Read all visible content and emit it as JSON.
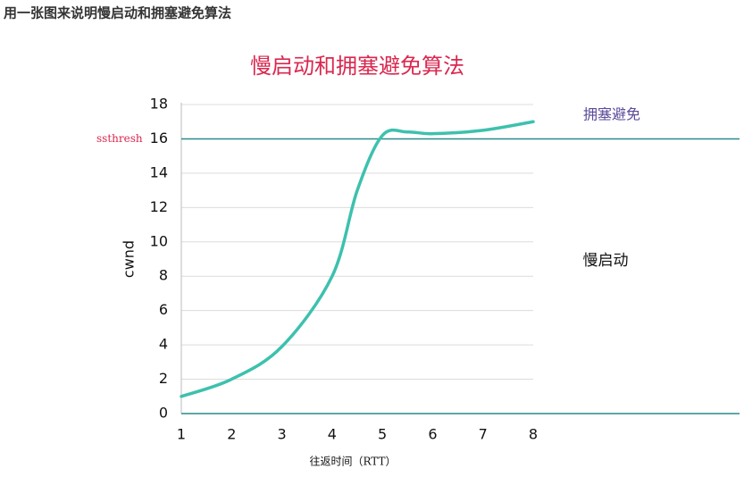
{
  "header": {
    "title": "用一张图来说明慢启动和拥塞避免算法"
  },
  "chart_data": {
    "type": "line",
    "title": "慢启动和拥塞避免算法",
    "x_label": "往返时间（RTT）",
    "y_label": "cwnd",
    "x": [
      1,
      2,
      3,
      4,
      4.5,
      5,
      5.5,
      6,
      7,
      8
    ],
    "series": [
      {
        "color": "#3dc1ad",
        "values": [
          1,
          2,
          3.9,
          8,
          13,
          16.2,
          16.4,
          16.3,
          16.5,
          17
        ]
      }
    ],
    "xlim": [
      1,
      8
    ],
    "xticks": [
      1,
      2,
      3,
      4,
      5,
      6,
      7,
      8
    ],
    "ylim": [
      0,
      18
    ],
    "yticks": [
      0,
      2,
      4,
      6,
      8,
      10,
      12,
      14,
      16,
      18
    ],
    "grid": true,
    "threshold": {
      "value": 16,
      "label": "ssthresh",
      "color": "#2a8a8c"
    },
    "annotations": [
      {
        "text": "拥塞避免",
        "color": "#5b4b9a"
      },
      {
        "text": "慢启动",
        "color": "#111111"
      }
    ]
  }
}
